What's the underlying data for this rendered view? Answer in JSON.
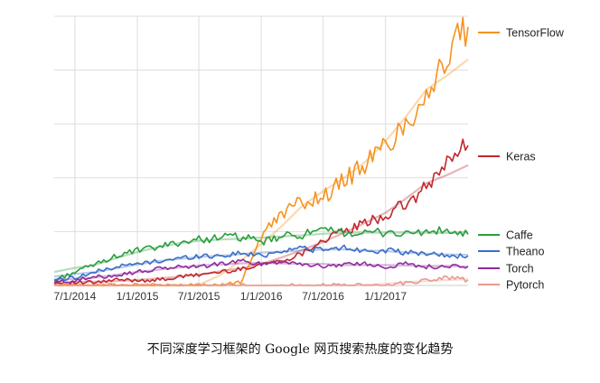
{
  "caption": "不同深度学习框架的 Google 网页搜索热度的变化趋势",
  "chart_data": {
    "type": "line",
    "title": "",
    "xlabel": "",
    "ylabel": "",
    "x_ticks": [
      "7/1/2014",
      "1/1/2015",
      "7/1/2015",
      "1/1/2016",
      "7/1/2016",
      "1/1/2017"
    ],
    "x_tick_dates": [
      "2014-07-01",
      "2015-01-01",
      "2015-07-01",
      "2016-01-01",
      "2016-07-01",
      "2017-01-01"
    ],
    "x_range": [
      "2014-05-01",
      "2017-09-01"
    ],
    "y_range": [
      0,
      100
    ],
    "y_tick_labels_shown": false,
    "grid": "horizontal and vertical gridlines",
    "legend_position": "right, at series end values",
    "dates": [
      "2014-05",
      "2014-07",
      "2014-09",
      "2014-11",
      "2015-01",
      "2015-03",
      "2015-05",
      "2015-07",
      "2015-09",
      "2015-11",
      "2016-01",
      "2016-03",
      "2016-05",
      "2016-07",
      "2016-09",
      "2016-11",
      "2017-01",
      "2017-03",
      "2017-05",
      "2017-07",
      "2017-09"
    ],
    "series": [
      {
        "name": "TensorFlow",
        "color": "#f6921e",
        "trend": true,
        "values": [
          0,
          0,
          0,
          0,
          0,
          0,
          0,
          0,
          0,
          1,
          18,
          27,
          31,
          33,
          39,
          45,
          52,
          60,
          72,
          84,
          96
        ]
      },
      {
        "name": "Keras",
        "color": "#c1272d",
        "trend": true,
        "values": [
          1,
          1,
          1,
          2,
          2,
          2,
          3,
          4,
          5,
          6,
          8,
          9,
          12,
          17,
          20,
          23,
          26,
          30,
          36,
          46,
          52
        ]
      },
      {
        "name": "Caffe",
        "color": "#2a9d3f",
        "trend": true,
        "values": [
          2,
          5,
          8,
          11,
          13,
          14,
          16,
          17,
          18,
          18,
          16,
          18,
          19,
          20,
          20,
          19,
          20,
          19,
          20,
          20,
          19
        ]
      },
      {
        "name": "Theano",
        "color": "#3a6ec7",
        "trend": true,
        "values": [
          2,
          3,
          5,
          7,
          8,
          9,
          10,
          11,
          11,
          12,
          11,
          13,
          14,
          13,
          14,
          13,
          13,
          12,
          12,
          11,
          11
        ]
      },
      {
        "name": "Torch",
        "color": "#8e2c9e",
        "trend": true,
        "values": [
          1,
          2,
          3,
          4,
          5,
          6,
          7,
          7,
          8,
          9,
          8,
          9,
          8,
          7,
          8,
          8,
          7,
          8,
          7,
          7,
          7
        ]
      },
      {
        "name": "Pytorch",
        "color": "#e8998d",
        "trend": true,
        "values": [
          0,
          0,
          0,
          0,
          0,
          0,
          0,
          0,
          0,
          0,
          0,
          0,
          0,
          0,
          0,
          0,
          0,
          1,
          2,
          3,
          2
        ]
      }
    ]
  }
}
